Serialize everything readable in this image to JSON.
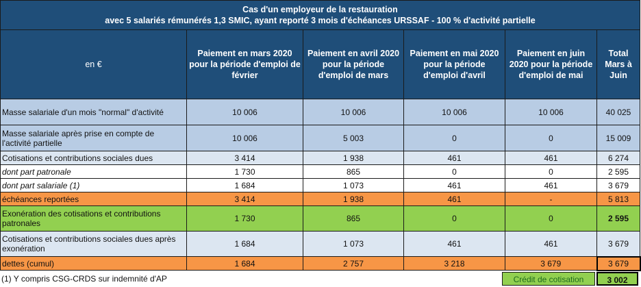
{
  "title": {
    "line1": "Cas d'un employeur de la restauration",
    "line2": "avec 5 salariés rémunérés 1,3 SMIC, ayant reporté 3 mois d'échéances URSSAF - 100 % d'activité partielle"
  },
  "headers": {
    "unit": "en €",
    "columns": [
      "Paiement en mars 2020 pour la période d'emploi de février",
      "Paiement en avril 2020 pour la période d'emploi de mars",
      "Paiement en mai 2020 pour la période d'emploi d'avril",
      "Paiement en juin 2020 pour la période d'emploi de mai",
      "Total Mars à Juin"
    ]
  },
  "rows": [
    {
      "label": "Masse salariale d'un mois \"normal\" d'activité",
      "values": [
        "10 006",
        "10 006",
        "10 006",
        "10 006",
        "40 025"
      ]
    },
    {
      "label": "Masse salariale après prise en compte de l'activité partielle",
      "values": [
        "10 006",
        "5 003",
        "0",
        "0",
        "15 009"
      ]
    },
    {
      "label": "Cotisations et contributions sociales dues",
      "values": [
        "3 414",
        "1 938",
        "461",
        "461",
        "6 274"
      ]
    },
    {
      "label": "dont part patronale",
      "values": [
        "1 730",
        "865",
        "0",
        "0",
        "2 595"
      ]
    },
    {
      "label": "dont part salariale (1)",
      "values": [
        "1 684",
        "1 073",
        "461",
        "461",
        "3 679"
      ]
    },
    {
      "label": "échéances reportées",
      "values": [
        "3 414",
        "1 938",
        "461",
        "-",
        "5 813"
      ]
    },
    {
      "label": "Exonération des cotisations et contributions patronales",
      "values": [
        "1 730",
        "865",
        "0",
        "0",
        "2 595"
      ]
    },
    {
      "label": "Cotisations et contributions sociales dues après exonération",
      "values": [
        "1 684",
        "1 073",
        "461",
        "461",
        "3 679"
      ]
    },
    {
      "label": "dettes (cumul)",
      "values": [
        "1 684",
        "2 757",
        "3 218",
        "3 679",
        "3 679"
      ]
    }
  ],
  "footer": {
    "note": "(1) Y compris CSG-CRDS sur indemnité d'AP",
    "credit_label": "Crédit de cotisation",
    "credit_value": "3 002"
  },
  "colors": {
    "header": "#1f4e79",
    "blue": "#b8cce4",
    "light_blue": "#dce6f1",
    "orange": "#f79646",
    "green": "#92d050"
  }
}
